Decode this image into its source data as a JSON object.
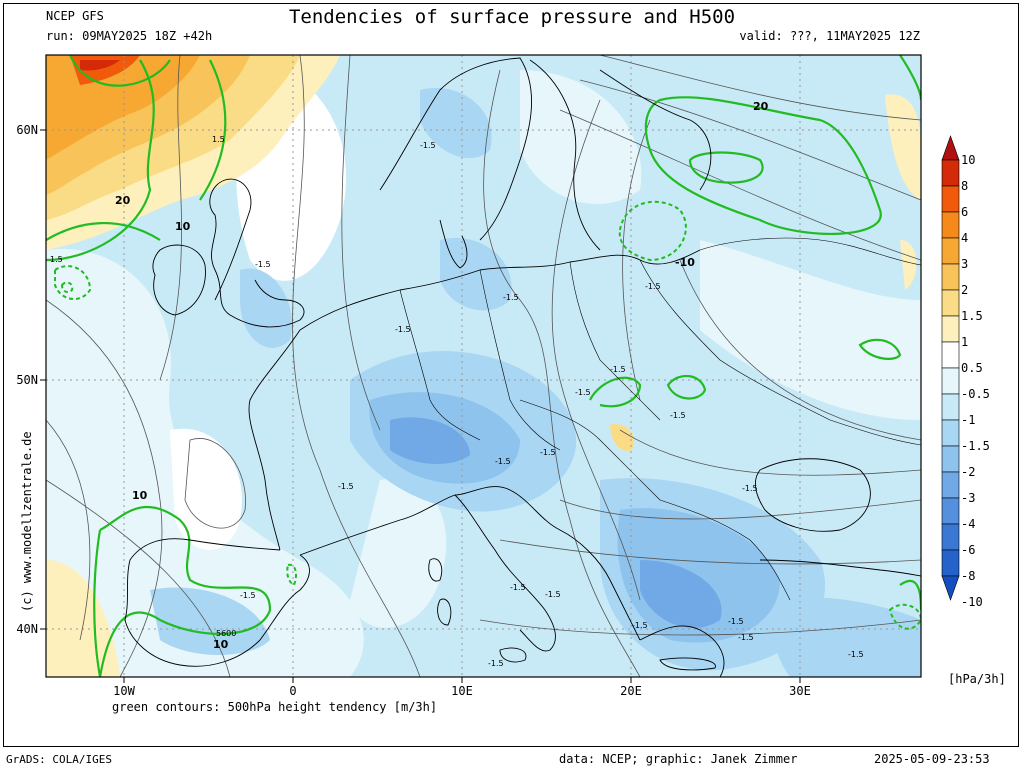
{
  "header": {
    "model": "NCEP GFS",
    "title": "Tendencies of surface pressure and H500",
    "run": "run: 09MAY2025 18Z +42h",
    "valid": "valid: ???, 11MAY2025 12Z"
  },
  "map": {
    "lat_labels": [
      "60N",
      "50N",
      "40N"
    ],
    "lon_labels": [
      "10W",
      "0",
      "10E",
      "20E",
      "30E"
    ],
    "gray_contour_labels": [
      "-1.5",
      "-1.5",
      "-1.5",
      "-1.5",
      "-1.5",
      "-1.5",
      "-1.5",
      "-1.5",
      "-1.5",
      "-1.5",
      "-1.5",
      "-1.5",
      "-1.5",
      "-1.5",
      "-1.5",
      "-1.5",
      "-1.5",
      "-1.5",
      "-1.5",
      "-1.5",
      "1.5",
      "1.5",
      "5600"
    ],
    "green_contour_labels": [
      "20",
      "20",
      "10",
      "10",
      "10",
      "-10"
    ],
    "colors": {
      "green_contour": "#22bb22",
      "gray_contour": "#555555",
      "coast": "#000000"
    }
  },
  "colorbar": {
    "labels": [
      "10",
      "8",
      "6",
      "4",
      "3",
      "2",
      "1.5",
      "1",
      "0.5",
      "-0.5",
      "-1",
      "-1.5",
      "-2",
      "-3",
      "-4",
      "-6",
      "-8",
      "-10"
    ],
    "colors": [
      "#b01010",
      "#d42a0a",
      "#f05a0a",
      "#f58a1a",
      "#f7a832",
      "#f8c45a",
      "#fbdc86",
      "#fdf0bc",
      "#ffffff",
      "#e6f6fb",
      "#c8eaf7",
      "#a9d6f3",
      "#8ec3ee",
      "#70a9e6",
      "#5590de",
      "#3a78d4",
      "#2562c9",
      "#154fbf"
    ],
    "unit": "[hPa/3h]"
  },
  "footer": {
    "legend": "green contours: 500hPa height tendency [m/3h]",
    "grads": "GrADS: COLA/IGES",
    "credit": "data: NCEP; graphic: Janek Zimmer",
    "timestamp": "2025-05-09-23:53",
    "watermark": "(c) www.modellzentrale.de"
  }
}
